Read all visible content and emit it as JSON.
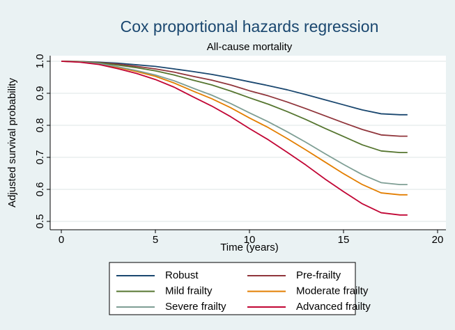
{
  "chart_data": {
    "type": "line",
    "title": "Cox proportional hazards regression",
    "subtitle": "All-cause mortality",
    "xlabel": "Time (years)",
    "ylabel": "Adjusted survival probability",
    "x": [
      0,
      1,
      2,
      3,
      4,
      5,
      6,
      7,
      8,
      9,
      10,
      11,
      12,
      13,
      14,
      15,
      16,
      17,
      18,
      18.4
    ],
    "series": [
      {
        "name": "Robust",
        "color": "#1a476f",
        "values": [
          1,
          0.999,
          0.997,
          0.994,
          0.989,
          0.984,
          0.976,
          0.968,
          0.959,
          0.948,
          0.936,
          0.924,
          0.911,
          0.896,
          0.88,
          0.864,
          0.848,
          0.836,
          0.833,
          0.833
        ]
      },
      {
        "name": "Pre-frailty",
        "color": "#90353b",
        "values": [
          1,
          0.999,
          0.996,
          0.991,
          0.984,
          0.976,
          0.966,
          0.953,
          0.941,
          0.926,
          0.908,
          0.892,
          0.873,
          0.852,
          0.83,
          0.808,
          0.787,
          0.77,
          0.766,
          0.766
        ]
      },
      {
        "name": "Mild frailty",
        "color": "#55752f",
        "values": [
          1,
          0.999,
          0.995,
          0.988,
          0.98,
          0.97,
          0.957,
          0.941,
          0.926,
          0.907,
          0.886,
          0.866,
          0.843,
          0.818,
          0.791,
          0.765,
          0.739,
          0.72,
          0.715,
          0.715
        ]
      },
      {
        "name": "Moderate frailty",
        "color": "#e37e00",
        "values": [
          1,
          0.998,
          0.992,
          0.981,
          0.968,
          0.953,
          0.932,
          0.907,
          0.883,
          0.855,
          0.823,
          0.793,
          0.759,
          0.723,
          0.686,
          0.649,
          0.615,
          0.589,
          0.583,
          0.583
        ]
      },
      {
        "name": "Severe frailty",
        "color": "#7e9e94",
        "values": [
          1,
          0.998,
          0.993,
          0.983,
          0.971,
          0.957,
          0.939,
          0.916,
          0.894,
          0.868,
          0.839,
          0.811,
          0.78,
          0.747,
          0.712,
          0.678,
          0.646,
          0.621,
          0.615,
          0.615
        ]
      },
      {
        "name": "Advanced frailty",
        "color": "#c10534",
        "values": [
          1,
          0.997,
          0.99,
          0.977,
          0.962,
          0.943,
          0.919,
          0.889,
          0.86,
          0.827,
          0.79,
          0.755,
          0.716,
          0.676,
          0.633,
          0.593,
          0.555,
          0.527,
          0.52,
          0.52
        ]
      }
    ],
    "xlim": [
      0,
      20
    ],
    "xticks": [
      0,
      5,
      10,
      15,
      20
    ],
    "ylim": [
      0.5,
      1
    ],
    "yticks": [
      0.5,
      0.6,
      0.7,
      0.8,
      0.9,
      {
        "value": 1,
        "label": "1.0"
      }
    ],
    "grid": true,
    "legend": "bottom"
  }
}
